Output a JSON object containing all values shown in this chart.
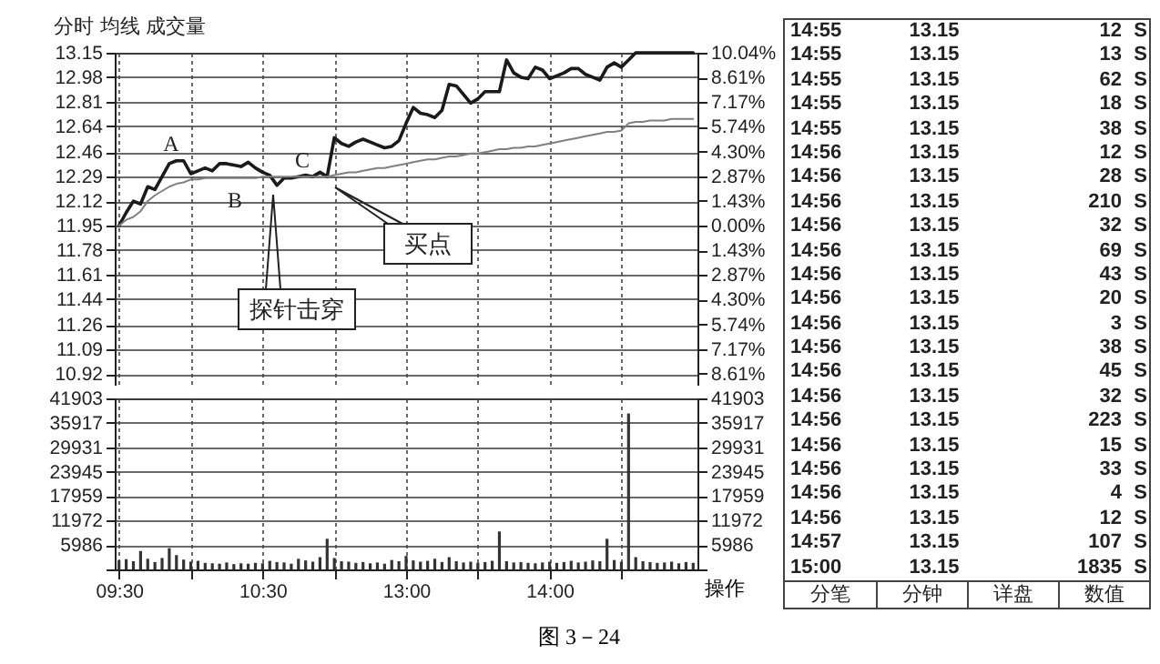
{
  "chart_data": [
    {
      "type": "line",
      "title": "分时 均线 成交量",
      "categories": [
        null,
        null,
        null,
        null,
        null,
        null,
        null,
        null,
        null,
        null,
        null,
        null,
        null,
        null,
        null,
        null,
        null,
        null,
        null,
        null,
        null,
        null,
        null,
        null,
        null,
        null,
        null,
        null,
        null,
        null,
        null,
        null,
        null,
        null,
        null,
        null,
        null,
        null,
        null,
        null,
        null,
        null,
        null,
        null,
        null,
        null,
        null,
        null,
        null,
        null,
        null,
        null,
        null,
        null,
        null,
        null,
        null,
        null,
        null,
        null,
        null,
        null,
        null,
        null,
        null,
        null,
        null,
        null,
        null,
        null,
        null,
        null,
        null,
        null,
        null,
        null,
        null,
        null,
        null,
        null,
        null
      ],
      "series": [
        {
          "values": [
            11.95,
            12.04,
            12.12,
            12.1,
            12.22,
            12.2,
            12.29,
            12.38,
            12.4,
            12.4,
            12.31,
            12.33,
            12.35,
            12.33,
            12.38,
            12.38,
            12.37,
            12.36,
            12.39,
            12.35,
            12.32,
            12.3,
            12.23,
            12.28,
            12.28,
            12.29,
            12.3,
            12.29,
            12.32,
            12.29,
            12.56,
            12.52,
            12.5,
            12.53,
            12.55,
            12.53,
            12.51,
            12.49,
            12.5,
            12.54,
            12.66,
            12.77,
            12.73,
            12.72,
            12.7,
            12.75,
            12.93,
            12.92,
            12.86,
            12.8,
            12.83,
            12.88,
            12.88,
            12.88,
            13.1,
            13.01,
            12.98,
            12.97,
            13.05,
            13.03,
            12.97,
            12.99,
            13.01,
            13.04,
            13.04,
            13.0,
            12.98,
            12.96,
            13.05,
            13.08,
            13.05,
            13.1,
            13.15,
            13.15,
            13.15,
            13.15,
            13.15,
            13.15,
            13.15,
            13.15,
            13.15
          ],
          "color": "#1a1a1a"
        },
        {
          "values": [
            11.95,
            11.99,
            12.01,
            12.05,
            12.12,
            12.16,
            12.19,
            12.22,
            12.24,
            12.25,
            12.27,
            12.27,
            12.28,
            12.28,
            12.28,
            12.28,
            12.28,
            12.28,
            12.28,
            12.28,
            12.29,
            12.29,
            12.29,
            12.29,
            12.29,
            12.29,
            12.29,
            12.29,
            12.29,
            12.29,
            12.3,
            12.31,
            12.32,
            12.32,
            12.33,
            12.34,
            12.35,
            12.35,
            12.36,
            12.37,
            12.38,
            12.39,
            12.4,
            12.41,
            12.41,
            12.42,
            12.43,
            12.43,
            12.44,
            12.45,
            12.45,
            12.46,
            12.47,
            12.48,
            12.48,
            12.49,
            12.49,
            12.5,
            12.5,
            12.51,
            12.52,
            12.53,
            12.54,
            12.55,
            12.56,
            12.57,
            12.58,
            12.59,
            12.6,
            12.6,
            12.61,
            12.66,
            12.67,
            12.67,
            12.68,
            12.68,
            12.68,
            12.69,
            12.69,
            12.69,
            12.69
          ],
          "color": "#808080"
        }
      ],
      "ylim": [
        10.75,
        13.15
      ],
      "yticks": [
        13.15,
        12.98,
        12.81,
        12.64,
        12.46,
        12.29,
        12.12,
        11.95,
        11.78,
        11.61,
        11.44,
        11.26,
        11.09,
        10.92
      ],
      "y2lim": [
        -10.04,
        10.04
      ],
      "y2ticks": [
        {
          "value": 10.04,
          "label": "10.04%"
        },
        {
          "value": 8.61,
          "label": "8.61%"
        },
        {
          "value": 7.17,
          "label": "7.17%"
        },
        {
          "value": 5.74,
          "label": "5.74%"
        },
        {
          "value": 4.3,
          "label": "4.30%"
        },
        {
          "value": 2.87,
          "label": "2.87%"
        },
        {
          "value": 1.43,
          "label": "1.43%"
        },
        {
          "value": 0,
          "label": "0.00%"
        },
        {
          "value": -1.43,
          "label": "1.43%"
        },
        {
          "value": -2.87,
          "label": "2.87%"
        },
        {
          "value": -4.3,
          "label": "4.30%"
        },
        {
          "value": -5.74,
          "label": "5.74%"
        },
        {
          "value": -7.17,
          "label": "7.17%"
        },
        {
          "value": -8.61,
          "label": "8.61%"
        }
      ],
      "grid": true,
      "annotations": [
        "A",
        "B",
        "C",
        "探针击穿",
        "买点"
      ]
    },
    {
      "type": "bar",
      "color": "#333333",
      "categories": [
        "09:30",
        null,
        null,
        null,
        null,
        null,
        null,
        null,
        null,
        null,
        null,
        null,
        null,
        null,
        null,
        null,
        null,
        null,
        null,
        null,
        "10:30",
        null,
        null,
        null,
        null,
        null,
        null,
        null,
        null,
        null,
        null,
        null,
        null,
        null,
        null,
        null,
        null,
        null,
        null,
        null,
        "13:00",
        null,
        null,
        null,
        null,
        null,
        null,
        null,
        null,
        null,
        null,
        null,
        null,
        null,
        null,
        null,
        null,
        null,
        null,
        null,
        "14:00",
        null,
        null,
        null,
        null,
        null,
        null,
        null,
        null,
        null,
        null,
        null,
        null,
        null,
        null,
        null,
        null,
        null,
        null,
        null,
        null
      ],
      "values": [
        2200,
        2500,
        2000,
        4500,
        2600,
        1800,
        2800,
        5200,
        3500,
        2400,
        1900,
        2100,
        1600,
        1500,
        1400,
        1700,
        1300,
        1500,
        1400,
        1600,
        1500,
        2100,
        1800,
        1700,
        1400,
        2600,
        2200,
        1900,
        3000,
        7500,
        2800,
        2000,
        1900,
        1600,
        1800,
        1500,
        1700,
        1400,
        2300,
        2000,
        3300,
        2200,
        1900,
        2100,
        2600,
        1800,
        3000,
        2000,
        1700,
        1900,
        1600,
        1800,
        2100,
        9300,
        2000,
        1700,
        1800,
        1600,
        1500,
        1700,
        1900,
        1600,
        1800,
        2100,
        1700,
        1900,
        2200,
        2000,
        7500,
        2300,
        1900,
        38200,
        3000,
        2000,
        1800,
        1600,
        1700,
        1900,
        1500,
        1800,
        1600
      ],
      "ylim": [
        0,
        41903
      ],
      "yticks": [
        {
          "value": 0,
          "label": null
        },
        5986,
        11972,
        17959,
        23945,
        29931,
        35917,
        41903
      ],
      "y2lim": [
        0,
        41903
      ],
      "y2ticks": [
        {
          "value": 0,
          "label": null
        },
        5986,
        11972,
        17959,
        23945,
        29931,
        35917,
        41903
      ],
      "grid": true,
      "annotations": [
        "操作",
        "图 3－24"
      ]
    },
    {
      "type": "other",
      "annotations": [
        "14:55 13.15 12 S",
        "14:55 13.15 13 S",
        "14:55 13.15 62 S",
        "14:55 13.15 18 S",
        "14:55 13.15 38 S",
        "14:56 13.15 12 S",
        "14:56 13.15 28 S",
        "14:56 13.15 210 S",
        "14:56 13.15 32 S",
        "14:56 13.15 69 S",
        "14:56 13.15 43 S",
        "14:56 13.15 20 S",
        "14:56 13.15 3 S",
        "14:56 13.15 38 S",
        "14:56 13.15 45 S",
        "14:56 13.15 32 S",
        "14:56 13.15 223 S",
        "14:56 13.15 15 S",
        "14:56 13.15 33 S",
        "14:56 13.15 4 S",
        "14:56 13.15 12 S",
        "14:57 13.15 107 S",
        "15:00 13.15 1835 S",
        "分笔",
        "分钟",
        "详盘",
        "数值"
      ]
    }
  ]
}
